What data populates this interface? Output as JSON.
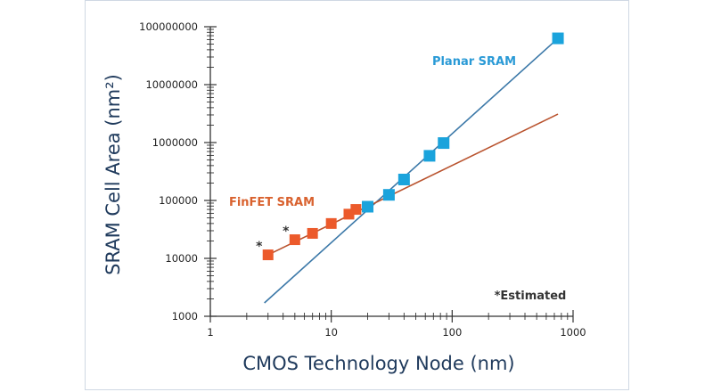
{
  "chart_data": {
    "type": "scatter",
    "xscale": "log",
    "yscale": "log",
    "xlim": [
      1,
      1000
    ],
    "ylim": [
      1000,
      100000000
    ],
    "xlabel": "CMOS Technology Node (nm)",
    "ylabel": "SRAM Cell Area (nm²)",
    "xticks": [
      "1",
      "10",
      "100",
      "1000"
    ],
    "yticks": [
      "1000",
      "10000",
      "100000",
      "1000000",
      "10000000",
      "100000000"
    ],
    "annotation": "*Estimated",
    "grid": false,
    "series": [
      {
        "name": "Planar SRAM",
        "color": "#1aa3dc",
        "line_color": "#3b78a8",
        "points": [
          {
            "x": 20,
            "y": 78000
          },
          {
            "x": 30,
            "y": 125000
          },
          {
            "x": 40,
            "y": 230000
          },
          {
            "x": 65,
            "y": 590000
          },
          {
            "x": 85,
            "y": 980000
          },
          {
            "x": 750,
            "y": 63000000
          }
        ],
        "trend": [
          {
            "x": 2.8,
            "y": 1700
          },
          {
            "x": 750,
            "y": 63000000
          }
        ]
      },
      {
        "name": "FinFET SRAM",
        "color": "#ec5a2b",
        "line_color": "#b9532e",
        "points": [
          {
            "x": 3,
            "y": 11500,
            "mark": "*"
          },
          {
            "x": 5,
            "y": 21000,
            "mark": "*"
          },
          {
            "x": 7,
            "y": 27000
          },
          {
            "x": 10,
            "y": 40000
          },
          {
            "x": 14,
            "y": 58000
          },
          {
            "x": 16,
            "y": 70000
          }
        ],
        "trend": [
          {
            "x": 3,
            "y": 11500
          },
          {
            "x": 750,
            "y": 3100000
          }
        ]
      }
    ]
  }
}
